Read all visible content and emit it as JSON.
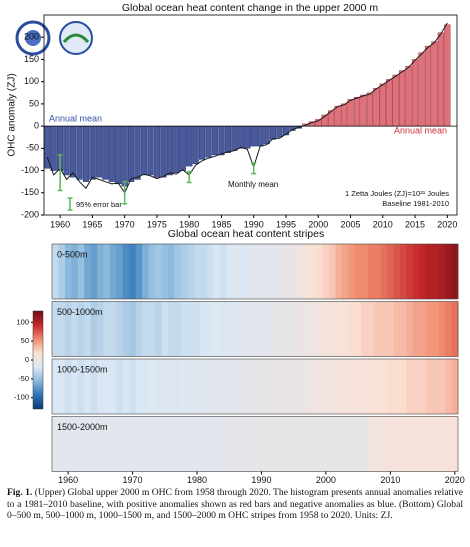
{
  "chart_data": [
    {
      "type": "bar",
      "title": "Global ocean heat content change in the upper 2000 m",
      "ylabel": "OHC anomaly (ZJ)",
      "x": [
        1958,
        1959,
        1960,
        1961,
        1962,
        1963,
        1964,
        1965,
        1966,
        1967,
        1968,
        1969,
        1970,
        1971,
        1972,
        1973,
        1974,
        1975,
        1976,
        1977,
        1978,
        1979,
        1980,
        1981,
        1982,
        1983,
        1984,
        1985,
        1986,
        1987,
        1988,
        1989,
        1990,
        1991,
        1992,
        1993,
        1994,
        1995,
        1996,
        1997,
        1998,
        1999,
        2000,
        2001,
        2002,
        2003,
        2004,
        2005,
        2006,
        2007,
        2008,
        2009,
        2010,
        2011,
        2012,
        2013,
        2014,
        2015,
        2016,
        2017,
        2018,
        2019,
        2020
      ],
      "xlim": [
        1957.5,
        2021.5
      ],
      "xticks": [
        1960,
        1965,
        1970,
        1975,
        1980,
        1985,
        1990,
        1995,
        2000,
        2005,
        2010,
        2015,
        2020
      ],
      "ylim": [
        -200,
        250
      ],
      "yticks": [
        -200,
        -150,
        -100,
        -50,
        0,
        50,
        100,
        150,
        200
      ],
      "series": [
        {
          "name": "Annual mean",
          "type": "bar",
          "negative_color": "#4b5a9c",
          "positive_color": "#e0707c",
          "values": [
            -95,
            -100,
            -100,
            -110,
            -115,
            -120,
            -125,
            -120,
            -115,
            -120,
            -125,
            -130,
            -135,
            -125,
            -120,
            -110,
            -110,
            -115,
            -115,
            -110,
            -105,
            -100,
            -90,
            -85,
            -75,
            -70,
            -65,
            -65,
            -60,
            -55,
            -50,
            -50,
            -45,
            -45,
            -40,
            -30,
            -25,
            -20,
            -10,
            -5,
            5,
            10,
            15,
            25,
            35,
            45,
            50,
            60,
            65,
            70,
            75,
            85,
            95,
            105,
            115,
            125,
            135,
            150,
            165,
            180,
            190,
            210,
            228
          ]
        },
        {
          "name": "Monthly mean",
          "type": "line",
          "color": "#1a1a1a",
          "values": [
            -70,
            -110,
            -95,
            -120,
            -105,
            -125,
            -140,
            -115,
            -120,
            -125,
            -130,
            -128,
            -150,
            -118,
            -115,
            -108,
            -112,
            -118,
            -113,
            -105,
            -108,
            -98,
            -110,
            -88,
            -78,
            -72,
            -68,
            -62,
            -58,
            -55,
            -48,
            -52,
            -92,
            -45,
            -42,
            -28,
            -27,
            -18,
            -8,
            -3,
            2,
            8,
            12,
            22,
            33,
            44,
            48,
            58,
            63,
            68,
            72,
            84,
            93,
            103,
            112,
            122,
            132,
            148,
            162,
            177,
            188,
            208,
            232
          ]
        }
      ],
      "error_bars": {
        "name": "95% error bar",
        "color": "#5cb85c",
        "x": [
          1960,
          1970,
          1980,
          1990
        ],
        "values": [
          -105,
          -150,
          -115,
          -95
        ],
        "errors": [
          40,
          25,
          12,
          12
        ]
      },
      "annotations": [
        "Annual mean",
        "1 Zetta Joules (ZJ)=10²¹ Joules",
        "Baseline 1981-2010"
      ]
    },
    {
      "type": "stripes",
      "title": "Global ocean heat content stripes",
      "x": [
        1958,
        1959,
        1960,
        1961,
        1962,
        1963,
        1964,
        1965,
        1966,
        1967,
        1968,
        1969,
        1970,
        1971,
        1972,
        1973,
        1974,
        1975,
        1976,
        1977,
        1978,
        1979,
        1980,
        1981,
        1982,
        1983,
        1984,
        1985,
        1986,
        1987,
        1988,
        1989,
        1990,
        1991,
        1992,
        1993,
        1994,
        1995,
        1996,
        1997,
        1998,
        1999,
        2000,
        2001,
        2002,
        2003,
        2004,
        2005,
        2006,
        2007,
        2008,
        2009,
        2010,
        2011,
        2012,
        2013,
        2014,
        2015,
        2016,
        2017,
        2018,
        2019,
        2020
      ],
      "xlim": [
        1957.5,
        2020.5
      ],
      "xticks": [
        1960,
        1970,
        1980,
        1990,
        2000,
        2010,
        2020
      ],
      "clim": [
        -130,
        130
      ],
      "cticks": [
        -100,
        -50,
        0,
        50,
        100
      ],
      "colors": [
        "#0b3a78",
        "#2d74b6",
        "#8ab9dc",
        "#dce8f4",
        "#fbe0d4",
        "#f08a6c",
        "#c4262a",
        "#6b0d12"
      ],
      "series": [
        {
          "name": "0-500m",
          "values": [
            -30,
            -40,
            -55,
            -60,
            -50,
            -65,
            -70,
            -60,
            -55,
            -65,
            -70,
            -80,
            -85,
            -75,
            -60,
            -50,
            -45,
            -50,
            -55,
            -45,
            -40,
            -35,
            -30,
            -30,
            -25,
            -20,
            -25,
            -20,
            -15,
            -20,
            -15,
            -10,
            -10,
            -10,
            -15,
            -5,
            -5,
            0,
            5,
            10,
            15,
            20,
            25,
            30,
            40,
            45,
            50,
            55,
            55,
            60,
            60,
            65,
            70,
            75,
            80,
            85,
            90,
            95,
            100,
            100,
            105,
            110,
            115
          ]
        },
        {
          "name": "500-1000m",
          "values": [
            -30,
            -30,
            -35,
            -30,
            -35,
            -30,
            -40,
            -35,
            -30,
            -30,
            -35,
            -40,
            -45,
            -35,
            -30,
            -30,
            -35,
            -25,
            -30,
            -30,
            -25,
            -25,
            -25,
            -20,
            -20,
            -15,
            -20,
            -15,
            -15,
            -15,
            -10,
            -10,
            -10,
            -10,
            -5,
            -5,
            -5,
            -5,
            0,
            0,
            5,
            5,
            10,
            10,
            15,
            15,
            20,
            20,
            25,
            25,
            30,
            30,
            30,
            35,
            35,
            40,
            45,
            45,
            50,
            50,
            55,
            60,
            65
          ]
        },
        {
          "name": "1000-1500m",
          "values": [
            -20,
            -20,
            -25,
            -20,
            -25,
            -20,
            -25,
            -20,
            -20,
            -20,
            -25,
            -20,
            -25,
            -20,
            -20,
            -15,
            -20,
            -15,
            -15,
            -20,
            -15,
            -15,
            -15,
            -15,
            -10,
            -15,
            -10,
            -10,
            -10,
            -10,
            -10,
            -5,
            -5,
            -5,
            -5,
            -5,
            0,
            -5,
            0,
            0,
            5,
            5,
            5,
            5,
            10,
            10,
            10,
            10,
            15,
            15,
            15,
            15,
            20,
            20,
            20,
            25,
            25,
            25,
            30,
            30,
            30,
            35,
            40
          ]
        },
        {
          "name": "1500-2000m",
          "values": [
            -10,
            -10,
            -10,
            -15,
            -10,
            -10,
            -15,
            -10,
            -10,
            -10,
            -10,
            -10,
            -10,
            -10,
            -10,
            -10,
            -10,
            -10,
            -10,
            -10,
            -10,
            -10,
            -10,
            -10,
            -10,
            -10,
            -10,
            -10,
            -5,
            -10,
            -10,
            -5,
            -5,
            -5,
            -5,
            -5,
            -5,
            -5,
            -5,
            -5,
            -5,
            -5,
            -5,
            -5,
            -5,
            -5,
            -5,
            -5,
            -5,
            5,
            5,
            5,
            10,
            10,
            10,
            10,
            10,
            10,
            10,
            10,
            10,
            15,
            15
          ]
        }
      ]
    }
  ],
  "caption": {
    "label": "Fig. 1.",
    "text": "(Upper) Global upper 2000 m OHC from 1958 through 2020. The histogram presents annual anomalies relative to a 1981–2010 baseline, with positive anomalies shown as red bars and negative anomalies as blue. (Bottom) Global 0–500 m, 500–1000 m, 1000–1500 m, and 1500–2000 m OHC stripes from 1958 to 2020. Units: ZJ."
  }
}
